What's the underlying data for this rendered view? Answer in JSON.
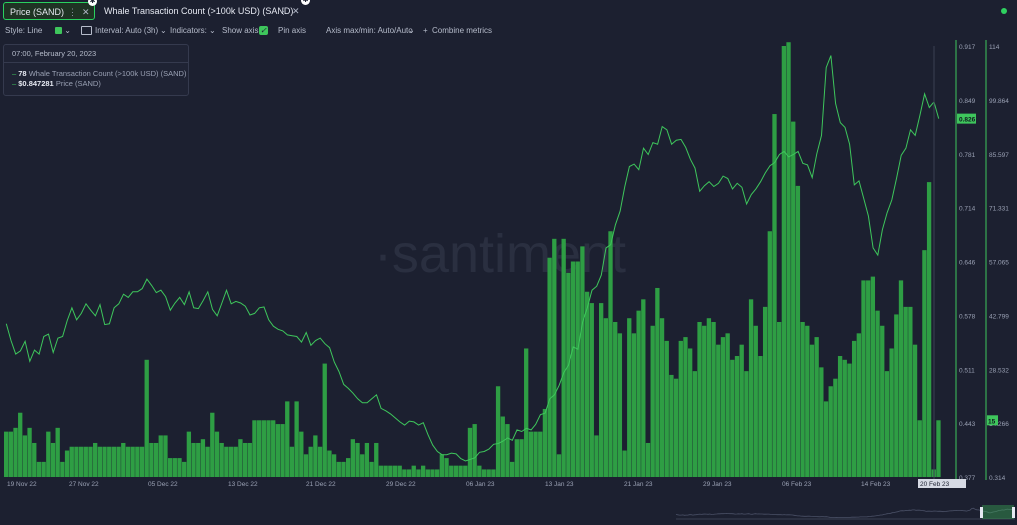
{
  "tabs": [
    {
      "label": "Price (SAND)",
      "active": true
    },
    {
      "label": "Whale Transaction Count (>100k USD) (SAND)",
      "active": false
    }
  ],
  "toolbar": {
    "style_label": "Style: Line",
    "interval_label": "Interval: Auto (3h)",
    "indicators_label": "Indicators:",
    "show_axis_label": "Show axis",
    "pin_axis_label": "Pin axis",
    "axis_minmax_label": "Axis max/min: Auto/Auto",
    "combine_label": "Combine metrics"
  },
  "tooltip": {
    "date": "07:00, February 20, 2023",
    "whale_value": "78",
    "whale_name": "Whale Transaction Count (>100k USD) (SAND)",
    "price_value": "$0.847281",
    "price_name": "Price (SAND)"
  },
  "watermark": "santiment",
  "colors": {
    "price_line": "#3ec65c",
    "bars": "#2e9e44",
    "background": "#1c2030"
  },
  "chart_data": {
    "type": "bar",
    "x_ticks": [
      "19 Nov 22",
      "27 Nov 22",
      "05 Dec 22",
      "13 Dec 22",
      "21 Dec 22",
      "29 Dec 22",
      "06 Jan 23",
      "13 Jan 23",
      "21 Jan 23",
      "29 Jan 23",
      "06 Feb 23",
      "14 Feb 23",
      "20 Feb 23"
    ],
    "price_axis": {
      "ticks": [
        "0.917",
        "0.849",
        "0.781",
        "0.714",
        "0.646",
        "0.578",
        "0.511",
        "0.443",
        "0.377"
      ],
      "ylim": [
        0.377,
        0.917
      ],
      "current_label": "0.826"
    },
    "count_axis": {
      "ticks": [
        "114",
        "99.864",
        "85.597",
        "71.331",
        "57.065",
        "42.799",
        "28.532",
        "14.266",
        "0.314"
      ],
      "ylim": [
        0,
        114
      ],
      "current_label": "15"
    },
    "series": [
      {
        "name": "Whale Transaction Count (>100k USD) (SAND)",
        "type": "bar",
        "values": [
          12,
          12,
          13,
          17,
          11,
          13,
          9,
          4,
          4,
          12,
          9,
          13,
          4,
          7,
          8,
          8,
          8,
          8,
          8,
          9,
          8,
          8,
          8,
          8,
          8,
          9,
          8,
          8,
          8,
          8,
          31,
          9,
          9,
          11,
          11,
          5,
          5,
          5,
          4,
          12,
          9,
          9,
          10,
          8,
          17,
          12,
          9,
          8,
          8,
          8,
          10,
          9,
          9,
          15,
          15,
          15,
          15,
          15,
          14,
          14,
          20,
          8,
          20,
          12,
          6,
          8,
          11,
          8,
          30,
          7,
          6,
          4,
          4,
          5,
          10,
          9,
          6,
          9,
          4,
          9,
          3,
          3,
          3,
          3,
          3,
          2,
          2,
          3,
          2,
          3,
          2,
          2,
          2,
          6,
          5,
          3,
          3,
          3,
          3,
          13,
          14,
          3,
          2,
          2,
          2,
          24,
          16,
          14,
          4,
          10,
          10,
          34,
          12,
          12,
          12,
          18,
          58,
          63,
          6,
          63,
          54,
          57,
          57,
          61,
          49,
          46,
          11,
          46,
          42,
          65,
          41,
          38,
          7,
          42,
          38,
          44,
          47,
          9,
          40,
          50,
          42,
          36,
          27,
          26,
          36,
          37,
          34,
          28,
          41,
          40,
          42,
          41,
          35,
          37,
          38,
          31,
          32,
          35,
          28,
          47,
          40,
          32,
          45,
          65,
          96,
          41,
          114,
          115,
          94,
          77,
          41,
          40,
          35,
          37,
          29,
          20,
          24,
          26,
          32,
          31,
          30,
          36,
          38,
          52,
          52,
          53,
          44,
          40,
          28,
          34,
          43,
          52,
          45,
          45,
          35,
          15,
          60,
          78,
          2,
          15
        ]
      },
      {
        "name": "Price (SAND)",
        "type": "line",
        "values": [
          0.569,
          0.548,
          0.531,
          0.535,
          0.547,
          0.522,
          0.536,
          0.531,
          0.553,
          0.556,
          0.533,
          0.551,
          0.553,
          0.573,
          0.589,
          0.574,
          0.582,
          0.594,
          0.586,
          0.579,
          0.593,
          0.568,
          0.569,
          0.589,
          0.594,
          0.606,
          0.602,
          0.609,
          0.609,
          0.613,
          0.625,
          0.617,
          0.608,
          0.611,
          0.603,
          0.586,
          0.595,
          0.602,
          0.593,
          0.609,
          0.589,
          0.588,
          0.598,
          0.609,
          0.587,
          0.579,
          0.595,
          0.611,
          0.594,
          0.597,
          0.595,
          0.591,
          0.58,
          0.582,
          0.589,
          0.59,
          0.574,
          0.566,
          0.562,
          0.56,
          0.555,
          0.554,
          0.553,
          0.546,
          0.558,
          0.542,
          0.548,
          0.551,
          0.544,
          0.539,
          0.521,
          0.509,
          0.493,
          0.488,
          0.482,
          0.475,
          0.47,
          0.47,
          0.475,
          0.48,
          0.463,
          0.46,
          0.456,
          0.451,
          0.446,
          0.442,
          0.447,
          0.446,
          0.442,
          0.445,
          0.43,
          0.417,
          0.409,
          0.405,
          0.405,
          0.407,
          0.406,
          0.4,
          0.397,
          0.399,
          0.401,
          0.408,
          0.409,
          0.412,
          0.418,
          0.419,
          0.422,
          0.426,
          0.423,
          0.436,
          0.434,
          0.438,
          0.436,
          0.443,
          0.455,
          0.457,
          0.475,
          0.48,
          0.492,
          0.508,
          0.517,
          0.54,
          0.537,
          0.571,
          0.589,
          0.611,
          0.616,
          0.63,
          0.664,
          0.668,
          0.693,
          0.71,
          0.741,
          0.766,
          0.769,
          0.762,
          0.789,
          0.781,
          0.796,
          0.794,
          0.816,
          0.812,
          0.794,
          0.799,
          0.8,
          0.79,
          0.775,
          0.764,
          0.735,
          0.742,
          0.747,
          0.741,
          0.745,
          0.754,
          0.751,
          0.738,
          0.745,
          0.74,
          0.719,
          0.731,
          0.738,
          0.747,
          0.758,
          0.767,
          0.771,
          0.781,
          0.785,
          0.778,
          0.781,
          0.785,
          0.77,
          0.768,
          0.752,
          0.782,
          0.805,
          0.89,
          0.905,
          0.845,
          0.821,
          0.815,
          0.794,
          0.743,
          0.748,
          0.726,
          0.704,
          0.664,
          0.655,
          0.687,
          0.708,
          0.724,
          0.751,
          0.78,
          0.789,
          0.812,
          0.805,
          0.83,
          0.857,
          0.84,
          0.847,
          0.826
        ]
      }
    ]
  }
}
